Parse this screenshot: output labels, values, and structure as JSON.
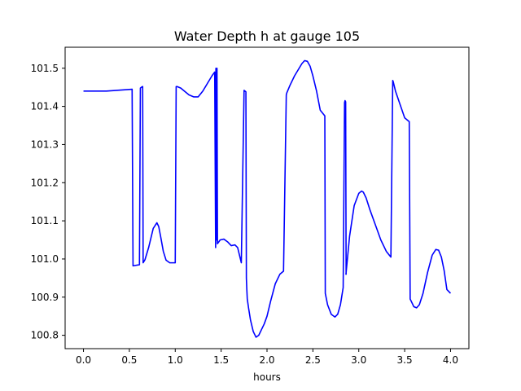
{
  "chart_data": {
    "type": "line",
    "title": "Water Depth h at gauge 105",
    "xlabel": "hours",
    "ylabel": "",
    "xlim": [
      -0.2,
      4.2
    ],
    "ylim": [
      100.765,
      101.555
    ],
    "x_ticks": [
      0.0,
      0.5,
      1.0,
      1.5,
      2.0,
      2.5,
      3.0,
      3.5,
      4.0
    ],
    "x_tick_labels": [
      "0.0",
      "0.5",
      "1.0",
      "1.5",
      "2.0",
      "2.5",
      "3.0",
      "3.5",
      "4.0"
    ],
    "y_ticks": [
      100.8,
      100.9,
      101.0,
      101.1,
      101.2,
      101.3,
      101.4,
      101.5
    ],
    "y_tick_labels": [
      "100.8",
      "100.9",
      "101.0",
      "101.1",
      "101.2",
      "101.3",
      "101.4",
      "101.5"
    ],
    "grid": false,
    "line_color": "#0000ff",
    "series": [
      {
        "x": [
          0.0,
          0.25,
          0.53,
          0.54,
          0.61,
          0.62,
          0.63,
          0.645,
          0.65,
          0.67,
          0.71,
          0.76,
          0.8,
          0.82,
          0.84,
          0.87,
          0.9,
          0.94,
          1.0,
          1.01,
          1.02,
          1.06,
          1.1,
          1.15,
          1.2,
          1.25,
          1.3,
          1.35,
          1.4,
          1.43,
          1.44,
          1.443,
          1.448,
          1.455,
          1.46,
          1.49,
          1.53,
          1.57,
          1.61,
          1.65,
          1.68,
          1.7,
          1.72,
          1.75,
          1.77,
          1.775,
          1.78,
          1.785,
          1.8,
          1.82,
          1.85,
          1.88,
          1.91,
          1.94,
          1.97,
          2.0,
          2.04,
          2.09,
          2.14,
          2.18,
          2.21,
          2.215,
          2.25,
          2.3,
          2.35,
          2.38,
          2.41,
          2.44,
          2.47,
          2.5,
          2.54,
          2.58,
          2.63,
          2.635,
          2.66,
          2.7,
          2.74,
          2.77,
          2.8,
          2.83,
          2.845,
          2.85,
          2.857,
          2.862,
          2.86,
          2.9,
          2.95,
          3.0,
          3.03,
          3.05,
          3.08,
          3.12,
          3.18,
          3.24,
          3.3,
          3.35,
          3.37,
          3.375,
          3.4,
          3.45,
          3.5,
          3.55,
          3.56,
          3.57,
          3.6,
          3.63,
          3.66,
          3.7,
          3.75,
          3.8,
          3.84,
          3.87,
          3.9,
          3.93,
          3.96,
          4.0
        ],
        "y": [
          101.44,
          101.44,
          101.445,
          100.982,
          100.985,
          101.448,
          101.45,
          101.452,
          100.99,
          100.998,
          101.03,
          101.08,
          101.095,
          101.085,
          101.06,
          101.02,
          100.997,
          100.99,
          100.99,
          101.452,
          101.452,
          101.448,
          101.44,
          101.43,
          101.425,
          101.425,
          101.44,
          101.46,
          101.48,
          101.49,
          101.03,
          101.5,
          101.05,
          101.5,
          101.04,
          101.05,
          101.052,
          101.045,
          101.035,
          101.037,
          101.03,
          101.01,
          100.99,
          101.442,
          101.438,
          100.95,
          100.92,
          100.895,
          100.87,
          100.84,
          100.81,
          100.795,
          100.8,
          100.815,
          100.83,
          100.85,
          100.89,
          100.935,
          100.96,
          100.968,
          101.43,
          101.435,
          101.455,
          101.48,
          101.5,
          101.512,
          101.52,
          101.518,
          101.505,
          101.48,
          101.44,
          101.39,
          101.375,
          100.91,
          100.88,
          100.855,
          100.848,
          100.855,
          100.88,
          100.925,
          101.41,
          101.415,
          101.412,
          100.96,
          100.96,
          101.06,
          101.14,
          101.172,
          101.178,
          101.175,
          101.16,
          101.13,
          101.09,
          101.05,
          101.02,
          101.005,
          101.468,
          101.465,
          101.44,
          101.405,
          101.37,
          101.36,
          100.895,
          100.89,
          100.875,
          100.872,
          100.88,
          100.91,
          100.965,
          101.01,
          101.025,
          101.023,
          101.005,
          100.97,
          100.92,
          100.91
        ]
      }
    ]
  }
}
